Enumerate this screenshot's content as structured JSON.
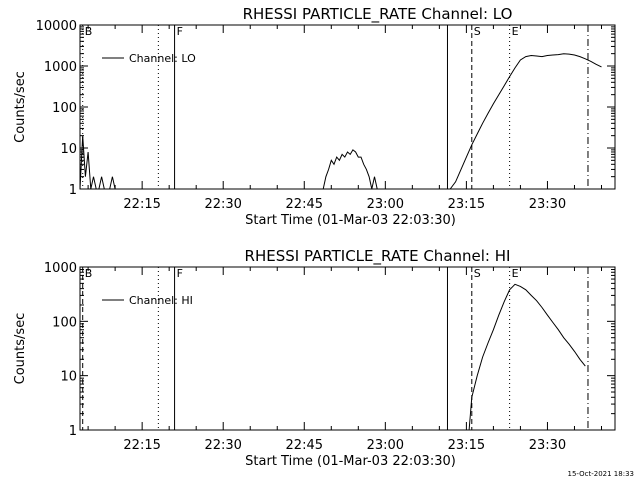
{
  "chart_data": [
    {
      "type": "line",
      "title": "RHESSI PARTICLE_RATE Channel: LO",
      "xlabel": "Start Time (01-Mar-03 22:03:30)",
      "ylabel": "Counts/sec",
      "yscale": "log",
      "xlim": [
        "22:03:30",
        "23:42:30"
      ],
      "ylim": [
        1,
        10000
      ],
      "xticks": [
        "22:15",
        "22:30",
        "22:45",
        "23:00",
        "23:15",
        "23:30"
      ],
      "yticks": [
        "1",
        "10",
        "100",
        "1000",
        "10000"
      ],
      "legend": "top-left",
      "series": [
        {
          "name": "Channel: LO",
          "x": [
            "22:03:30",
            "22:04:00",
            "22:04:30",
            "22:05:00",
            "22:05:30",
            "22:06:00",
            "22:06:30",
            "22:07:00",
            "22:07:30",
            "22:08:00",
            "22:08:30",
            "22:09:00",
            "22:09:30",
            "22:10:00"
          ],
          "y": [
            1,
            20,
            2,
            8,
            1,
            2,
            1,
            1,
            2,
            1,
            1,
            1,
            2,
            1
          ]
        },
        {
          "name": "Channel: LO",
          "x": [
            "22:48:30",
            "22:49:00",
            "22:49:30",
            "22:50:00",
            "22:50:30",
            "22:51:00",
            "22:51:30",
            "22:52:00",
            "22:52:30",
            "22:53:00",
            "22:53:30",
            "22:54:00",
            "22:54:30",
            "22:55:00",
            "22:55:30",
            "22:56:00",
            "22:56:30",
            "22:57:00",
            "22:57:30",
            "22:58:00",
            "22:58:30"
          ],
          "y": [
            1,
            2,
            3,
            5,
            4,
            6,
            5,
            7,
            6,
            8,
            7,
            9,
            8,
            6,
            6,
            4,
            3,
            2,
            1,
            2,
            1
          ]
        },
        {
          "name": "Channel: LO",
          "x": [
            "23:12:00",
            "23:13:00",
            "23:14:00",
            "23:15:00",
            "23:16:00",
            "23:17:00",
            "23:18:00",
            "23:19:00",
            "23:20:00",
            "23:21:00",
            "23:22:00",
            "23:23:00",
            "23:24:00",
            "23:25:00",
            "23:26:00",
            "23:27:00",
            "23:28:00",
            "23:29:00",
            "23:30:00",
            "23:31:00",
            "23:32:00",
            "23:33:00",
            "23:34:00",
            "23:35:00",
            "23:36:00",
            "23:37:00",
            "23:38:00",
            "23:39:00",
            "23:40:00"
          ],
          "y": [
            1,
            1.5,
            3,
            6,
            12,
            22,
            40,
            70,
            120,
            200,
            330,
            550,
            900,
            1400,
            1700,
            1800,
            1750,
            1700,
            1800,
            1850,
            1900,
            2000,
            1950,
            1850,
            1700,
            1500,
            1300,
            1100,
            950
          ]
        }
      ],
      "markers": [
        {
          "label": "B",
          "time": "22:04:00",
          "style": "dotted"
        },
        {
          "label": "",
          "time": "22:18:00",
          "style": "dotted"
        },
        {
          "label": "F",
          "time": "22:21:00",
          "style": "solid"
        },
        {
          "label": "",
          "time": "23:11:30",
          "style": "solid"
        },
        {
          "label": "S",
          "time": "23:16:00",
          "style": "dashed"
        },
        {
          "label": "E",
          "time": "23:23:00",
          "style": "dotted"
        },
        {
          "label": "",
          "time": "23:37:30",
          "style": "dashdot"
        }
      ]
    },
    {
      "type": "line",
      "title": "RHESSI PARTICLE_RATE Channel: HI",
      "xlabel": "Start Time (01-Mar-03 22:03:30)",
      "ylabel": "Counts/sec",
      "yscale": "log",
      "xlim": [
        "22:03:30",
        "23:42:30"
      ],
      "ylim": [
        1,
        1000
      ],
      "xticks": [
        "22:15",
        "22:30",
        "22:45",
        "23:00",
        "23:15",
        "23:30"
      ],
      "yticks": [
        "1",
        "10",
        "100",
        "1000"
      ],
      "legend": "top-left",
      "series": [
        {
          "name": "Channel: HI",
          "x": [
            "23:15:30",
            "23:16:00",
            "23:17:00",
            "23:18:00",
            "23:19:00",
            "23:20:00",
            "23:21:00",
            "23:22:00",
            "23:23:00",
            "23:24:00",
            "23:25:00",
            "23:26:00",
            "23:27:00",
            "23:28:00",
            "23:29:00",
            "23:30:00",
            "23:31:00",
            "23:32:00",
            "23:33:00",
            "23:34:00",
            "23:35:00",
            "23:36:00",
            "23:37:00"
          ],
          "y": [
            1,
            4,
            10,
            22,
            40,
            70,
            130,
            230,
            380,
            480,
            440,
            380,
            300,
            240,
            180,
            130,
            95,
            70,
            50,
            38,
            28,
            20,
            15
          ]
        }
      ],
      "markers": [
        {
          "label": "B",
          "time": "22:04:00",
          "style": "dashed"
        },
        {
          "label": "",
          "time": "22:18:00",
          "style": "dotted"
        },
        {
          "label": "F",
          "time": "22:21:00",
          "style": "solid"
        },
        {
          "label": "",
          "time": "23:11:30",
          "style": "solid"
        },
        {
          "label": "S",
          "time": "23:16:00",
          "style": "dashed"
        },
        {
          "label": "E",
          "time": "23:23:00",
          "style": "dotted"
        },
        {
          "label": "",
          "time": "23:37:30",
          "style": "dashdot"
        }
      ]
    }
  ],
  "footer": {
    "timestamp": "15-Oct-2021 18:33"
  }
}
